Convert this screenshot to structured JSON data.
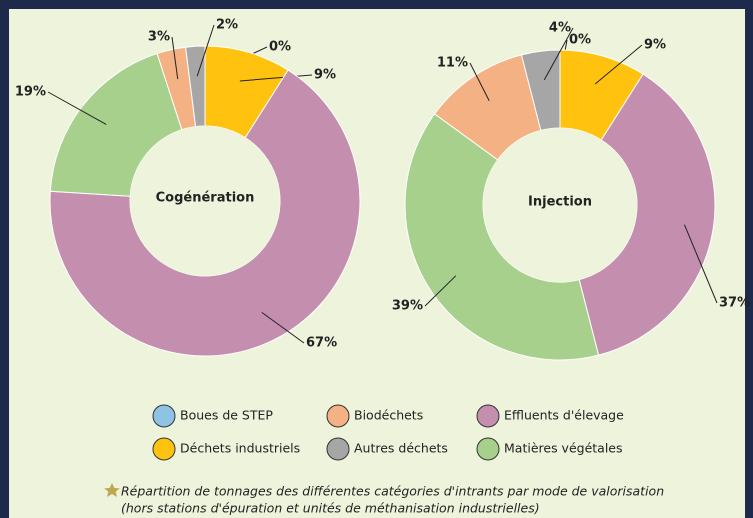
{
  "legend": {
    "categories": [
      "Boues de STEP",
      "Déchets industriels",
      "Effluents d'élevage",
      "Matières végétales",
      "Biodéchets",
      "Autres déchets"
    ],
    "colors": [
      "#8fc3e6",
      "#ffc20e",
      "#c48fae",
      "#a8d08d",
      "#f4b183",
      "#a6a6a6"
    ]
  },
  "chart_data": [
    {
      "type": "donut",
      "title": "Cogénération",
      "values": [
        0,
        9,
        67,
        19,
        3,
        2
      ],
      "value_labels": [
        "0%",
        "9%",
        "67%",
        "19%",
        "3%",
        "2%"
      ]
    },
    {
      "type": "donut",
      "title": "Injection",
      "values": [
        0,
        9,
        37,
        39,
        11,
        4
      ],
      "value_labels": [
        "0%",
        "9%",
        "37%",
        "39%",
        "11%",
        "4%"
      ]
    }
  ],
  "caption": [
    "Répartition de tonnages des différentes catégories d'intrants par mode de valorisation",
    "(hors stations d'épuration et unités de méthanisation industrielles)"
  ]
}
